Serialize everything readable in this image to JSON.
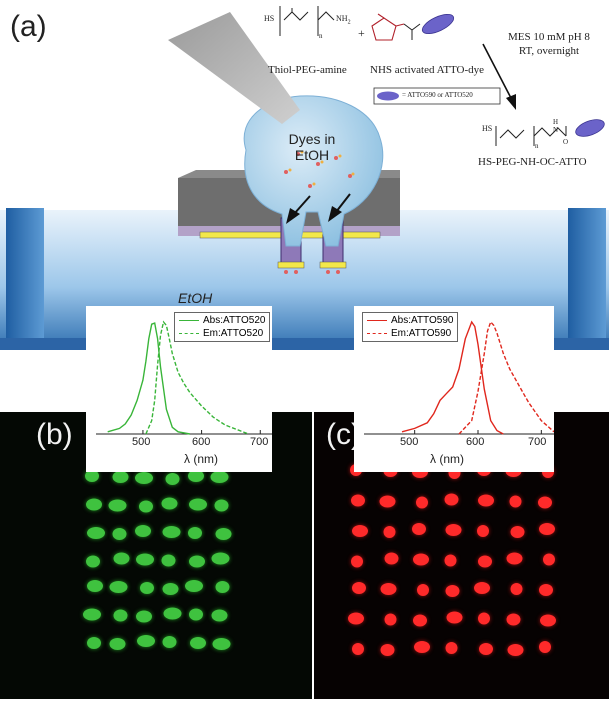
{
  "panel_labels": {
    "a": "(a)",
    "b": "(b)",
    "c": "(c)"
  },
  "schematic": {
    "dyes_label_line1": "Dyes in",
    "dyes_label_line2": "EtOH",
    "etoh_label": "EtOH"
  },
  "chemistry": {
    "reactant1_formula_left": "HS",
    "reactant1_formula_right": "NH",
    "reactant1_subscript_2": "2",
    "reactant1_n": "n",
    "plus": "+",
    "reactant1_name": "Thiol-PEG-amine",
    "reactant2_name": "NHS activated ATTO-dye",
    "conditions_line1": "MES 10 mM pH 8",
    "conditions_line2": "RT, overnight",
    "legend_text": "= ATTO590 or ATTO520",
    "product_formula_left": "HS",
    "product_n": "n",
    "product_H": "H",
    "product_N": "N",
    "product_O": "O",
    "product_name": "HS-PEG-NH-OC-ATTO"
  },
  "colors": {
    "green": "#39b539",
    "red": "#e0271d",
    "blue_bath": "#6fa9d8",
    "drop": "#a9d0ea"
  },
  "chart_data": [
    {
      "type": "line",
      "xlabel": "λ (nm)",
      "x_ticks": [
        "500",
        "600",
        "700"
      ],
      "xlim": [
        420,
        720
      ],
      "series": [
        {
          "name": "Abs:ATTO520",
          "style": "solid",
          "color": "#39b539",
          "x": [
            440,
            460,
            470,
            480,
            490,
            500,
            505,
            510,
            515,
            520,
            525,
            530,
            540,
            550,
            560,
            580
          ],
          "y": [
            0.02,
            0.05,
            0.09,
            0.17,
            0.3,
            0.48,
            0.65,
            0.85,
            0.98,
            0.99,
            0.85,
            0.6,
            0.22,
            0.06,
            0.02,
            0.0
          ]
        },
        {
          "name": "Em:ATTO520",
          "style": "dashed",
          "color": "#39b539",
          "x": [
            505,
            515,
            520,
            525,
            530,
            535,
            540,
            545,
            550,
            560,
            570,
            580,
            600,
            620,
            640,
            660,
            680
          ],
          "y": [
            0.0,
            0.12,
            0.3,
            0.62,
            0.88,
            1.0,
            0.97,
            0.85,
            0.72,
            0.55,
            0.45,
            0.37,
            0.25,
            0.15,
            0.08,
            0.04,
            0.0
          ]
        }
      ]
    },
    {
      "type": "line",
      "xlabel": "λ (nm)",
      "x_ticks": [
        "500",
        "600",
        "700"
      ],
      "xlim": [
        420,
        720
      ],
      "series": [
        {
          "name": "Abs:ATTO590",
          "style": "solid",
          "color": "#e0271d",
          "x": [
            480,
            500,
            520,
            530,
            540,
            550,
            560,
            570,
            580,
            590,
            595,
            600,
            610,
            620,
            630,
            640
          ],
          "y": [
            0.02,
            0.05,
            0.1,
            0.18,
            0.3,
            0.36,
            0.42,
            0.58,
            0.85,
            1.0,
            0.96,
            0.8,
            0.4,
            0.12,
            0.03,
            0.0
          ]
        },
        {
          "name": "Em:ATTO590",
          "style": "dashed",
          "color": "#e0271d",
          "x": [
            570,
            590,
            600,
            610,
            615,
            620,
            625,
            630,
            640,
            650,
            660,
            670,
            680,
            700,
            720
          ],
          "y": [
            0.0,
            0.12,
            0.38,
            0.72,
            0.92,
            1.0,
            0.97,
            0.9,
            0.72,
            0.58,
            0.48,
            0.38,
            0.28,
            0.12,
            0.02
          ]
        }
      ]
    }
  ]
}
